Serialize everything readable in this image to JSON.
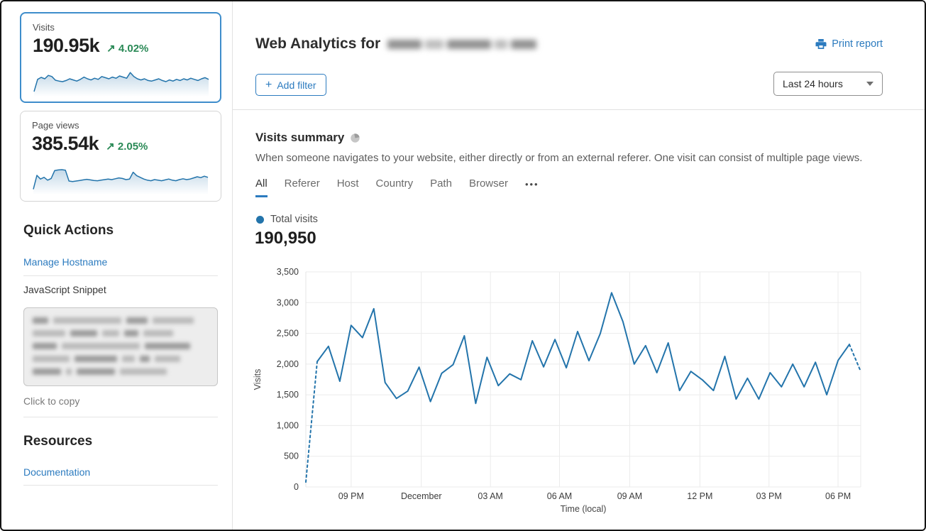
{
  "sidebar": {
    "visits_card": {
      "label": "Visits",
      "value": "190.95k",
      "arrow": "↗",
      "change": "4.02%"
    },
    "pageviews_card": {
      "label": "Page views",
      "value": "385.54k",
      "arrow": "↗",
      "change": "2.05%"
    },
    "quick_actions": {
      "title": "Quick Actions",
      "manage_hostname": "Manage Hostname",
      "js_snippet_label": "JavaScript Snippet",
      "click_to_copy": "Click to copy"
    },
    "resources": {
      "title": "Resources",
      "documentation": "Documentation"
    }
  },
  "header": {
    "title": "Web Analytics for",
    "print_report": "Print report",
    "add_filter_plus": "+",
    "add_filter_label": "Add filter",
    "time_range": "Last 24 hours"
  },
  "summary": {
    "title": "Visits summary",
    "description": "When someone navigates to your website, either directly or from an external referer. One visit can consist of multiple page views.",
    "tabs": [
      "All",
      "Referer",
      "Host",
      "Country",
      "Path",
      "Browser"
    ],
    "active_tab": "All",
    "overflow": "•••",
    "legend_label": "Total visits",
    "total": "190,950"
  },
  "colors": {
    "link_blue": "#2c7bbf",
    "chart_blue": "#2374ab",
    "trend_green": "#2b8a57",
    "selected_border": "#3e8dcb"
  },
  "chart_data": [
    {
      "type": "line",
      "name": "visits-over-time",
      "series_name": "Total visits",
      "total": 190950,
      "ylabel": "Visits",
      "xlabel": "Time (local)",
      "ylim": [
        0,
        3500
      ],
      "grid": true,
      "first_segment_dashed": true,
      "last_segment_dashed": true,
      "y_ticks": [
        {
          "value": 0,
          "label": "0"
        },
        {
          "value": 500,
          "label": "500"
        },
        {
          "value": 1000,
          "label": "1,000"
        },
        {
          "value": 1500,
          "label": "1,500"
        },
        {
          "value": 2000,
          "label": "2,000"
        },
        {
          "value": 2500,
          "label": "2,500"
        },
        {
          "value": 3000,
          "label": "3,000"
        },
        {
          "value": 3500,
          "label": "3,500"
        }
      ],
      "x_ticks": [
        {
          "label": "09 PM",
          "index": 4
        },
        {
          "label": "December",
          "index": 10.2
        },
        {
          "label": "03 AM",
          "index": 16.3
        },
        {
          "label": "06 AM",
          "index": 22.4
        },
        {
          "label": "09 AM",
          "index": 28.6
        },
        {
          "label": "12 PM",
          "index": 34.8
        },
        {
          "label": "03 PM",
          "index": 40.9
        },
        {
          "label": "06 PM",
          "index": 47
        }
      ],
      "values": [
        80,
        2040,
        2290,
        1720,
        2630,
        2430,
        2900,
        1700,
        1440,
        1560,
        1950,
        1390,
        1850,
        1990,
        2460,
        1360,
        2110,
        1650,
        1840,
        1745,
        2380,
        1955,
        2400,
        1940,
        2530,
        2055,
        2495,
        3160,
        2690,
        2000,
        2300,
        1860,
        2345,
        1570,
        1880,
        1745,
        1570,
        2125,
        1430,
        1770,
        1430,
        1860,
        1630,
        2000,
        1630,
        2030,
        1500,
        2060,
        2320,
        1880
      ]
    },
    {
      "type": "sparkline-area",
      "name": "visits-sparkline",
      "value_scale": "relative-0-100",
      "values": [
        5,
        48,
        55,
        50,
        62,
        58,
        45,
        42,
        40,
        44,
        50,
        46,
        42,
        48,
        56,
        50,
        46,
        52,
        48,
        58,
        54,
        50,
        56,
        52,
        60,
        56,
        52,
        72,
        58,
        50,
        46,
        50,
        44,
        42,
        46,
        50,
        44,
        40,
        46,
        42,
        48,
        44,
        50,
        46,
        52,
        48,
        44,
        50,
        54,
        48
      ]
    },
    {
      "type": "sparkline-area",
      "name": "pageviews-sparkline",
      "value_scale": "relative-0-100",
      "values": [
        6,
        55,
        42,
        48,
        38,
        44,
        72,
        74,
        75,
        73,
        35,
        33,
        35,
        37,
        39,
        41,
        39,
        37,
        36,
        38,
        40,
        42,
        40,
        43,
        46,
        44,
        40,
        42,
        66,
        54,
        48,
        42,
        38,
        36,
        40,
        38,
        36,
        39,
        42,
        38,
        36,
        40,
        43,
        40,
        42,
        46,
        50,
        47,
        52,
        48
      ]
    }
  ]
}
